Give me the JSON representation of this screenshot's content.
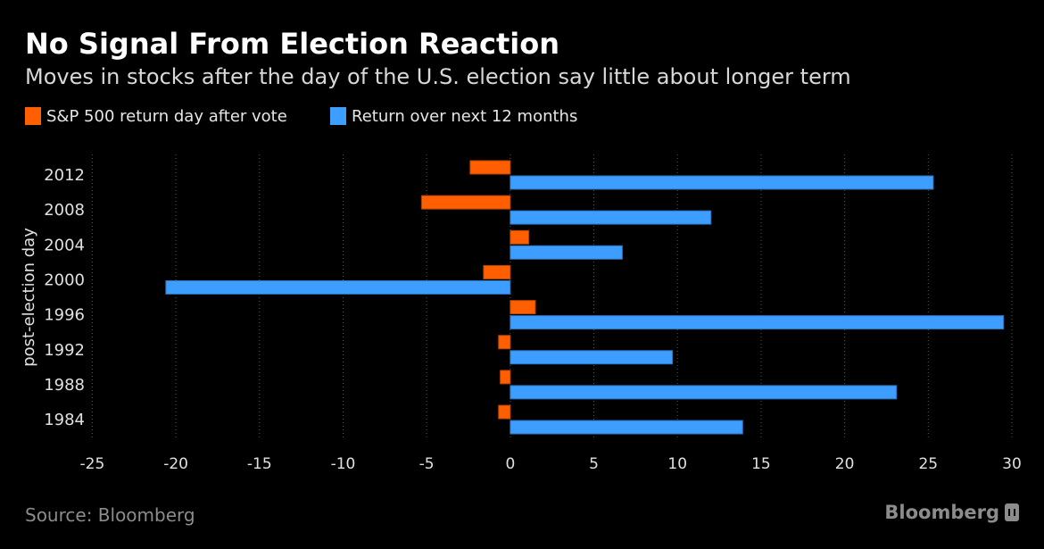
{
  "header": {
    "title": "No Signal From Election Reaction",
    "subtitle": "Moves in stocks after the day of the U.S. election say little about longer term"
  },
  "footer": {
    "source": "Source: Bloomberg",
    "brand": "Bloomberg"
  },
  "chart_data": {
    "type": "bar",
    "orientation": "horizontal",
    "title": "No Signal From Election Reaction",
    "subtitle": "Moves in stocks after the day of the U.S. election say little about longer term",
    "ylabel": "post-election day",
    "xlabel": "",
    "categories": [
      "2012",
      "2008",
      "2004",
      "2000",
      "1996",
      "1992",
      "1988",
      "1984"
    ],
    "series": [
      {
        "name": "S&P 500 return day after vote",
        "color": "#ff5f00",
        "values": [
          -2.4,
          -5.3,
          1.1,
          -1.6,
          1.5,
          -0.7,
          -0.6,
          -0.7
        ]
      },
      {
        "name": "Return over next 12 months",
        "color": "#3d9eff",
        "values": [
          25.3,
          12.0,
          6.7,
          -20.6,
          29.5,
          9.7,
          23.1,
          13.9
        ]
      }
    ],
    "xlim": [
      -25,
      30
    ],
    "xticks": [
      "-25",
      "-20",
      "-15",
      "-10",
      "-5",
      "0",
      "5",
      "10",
      "15",
      "20",
      "25",
      "30"
    ],
    "xtick_values": [
      -25,
      -20,
      -15,
      -10,
      -5,
      0,
      5,
      10,
      15,
      20,
      25,
      30
    ],
    "grid": true,
    "legend": "top-left"
  }
}
